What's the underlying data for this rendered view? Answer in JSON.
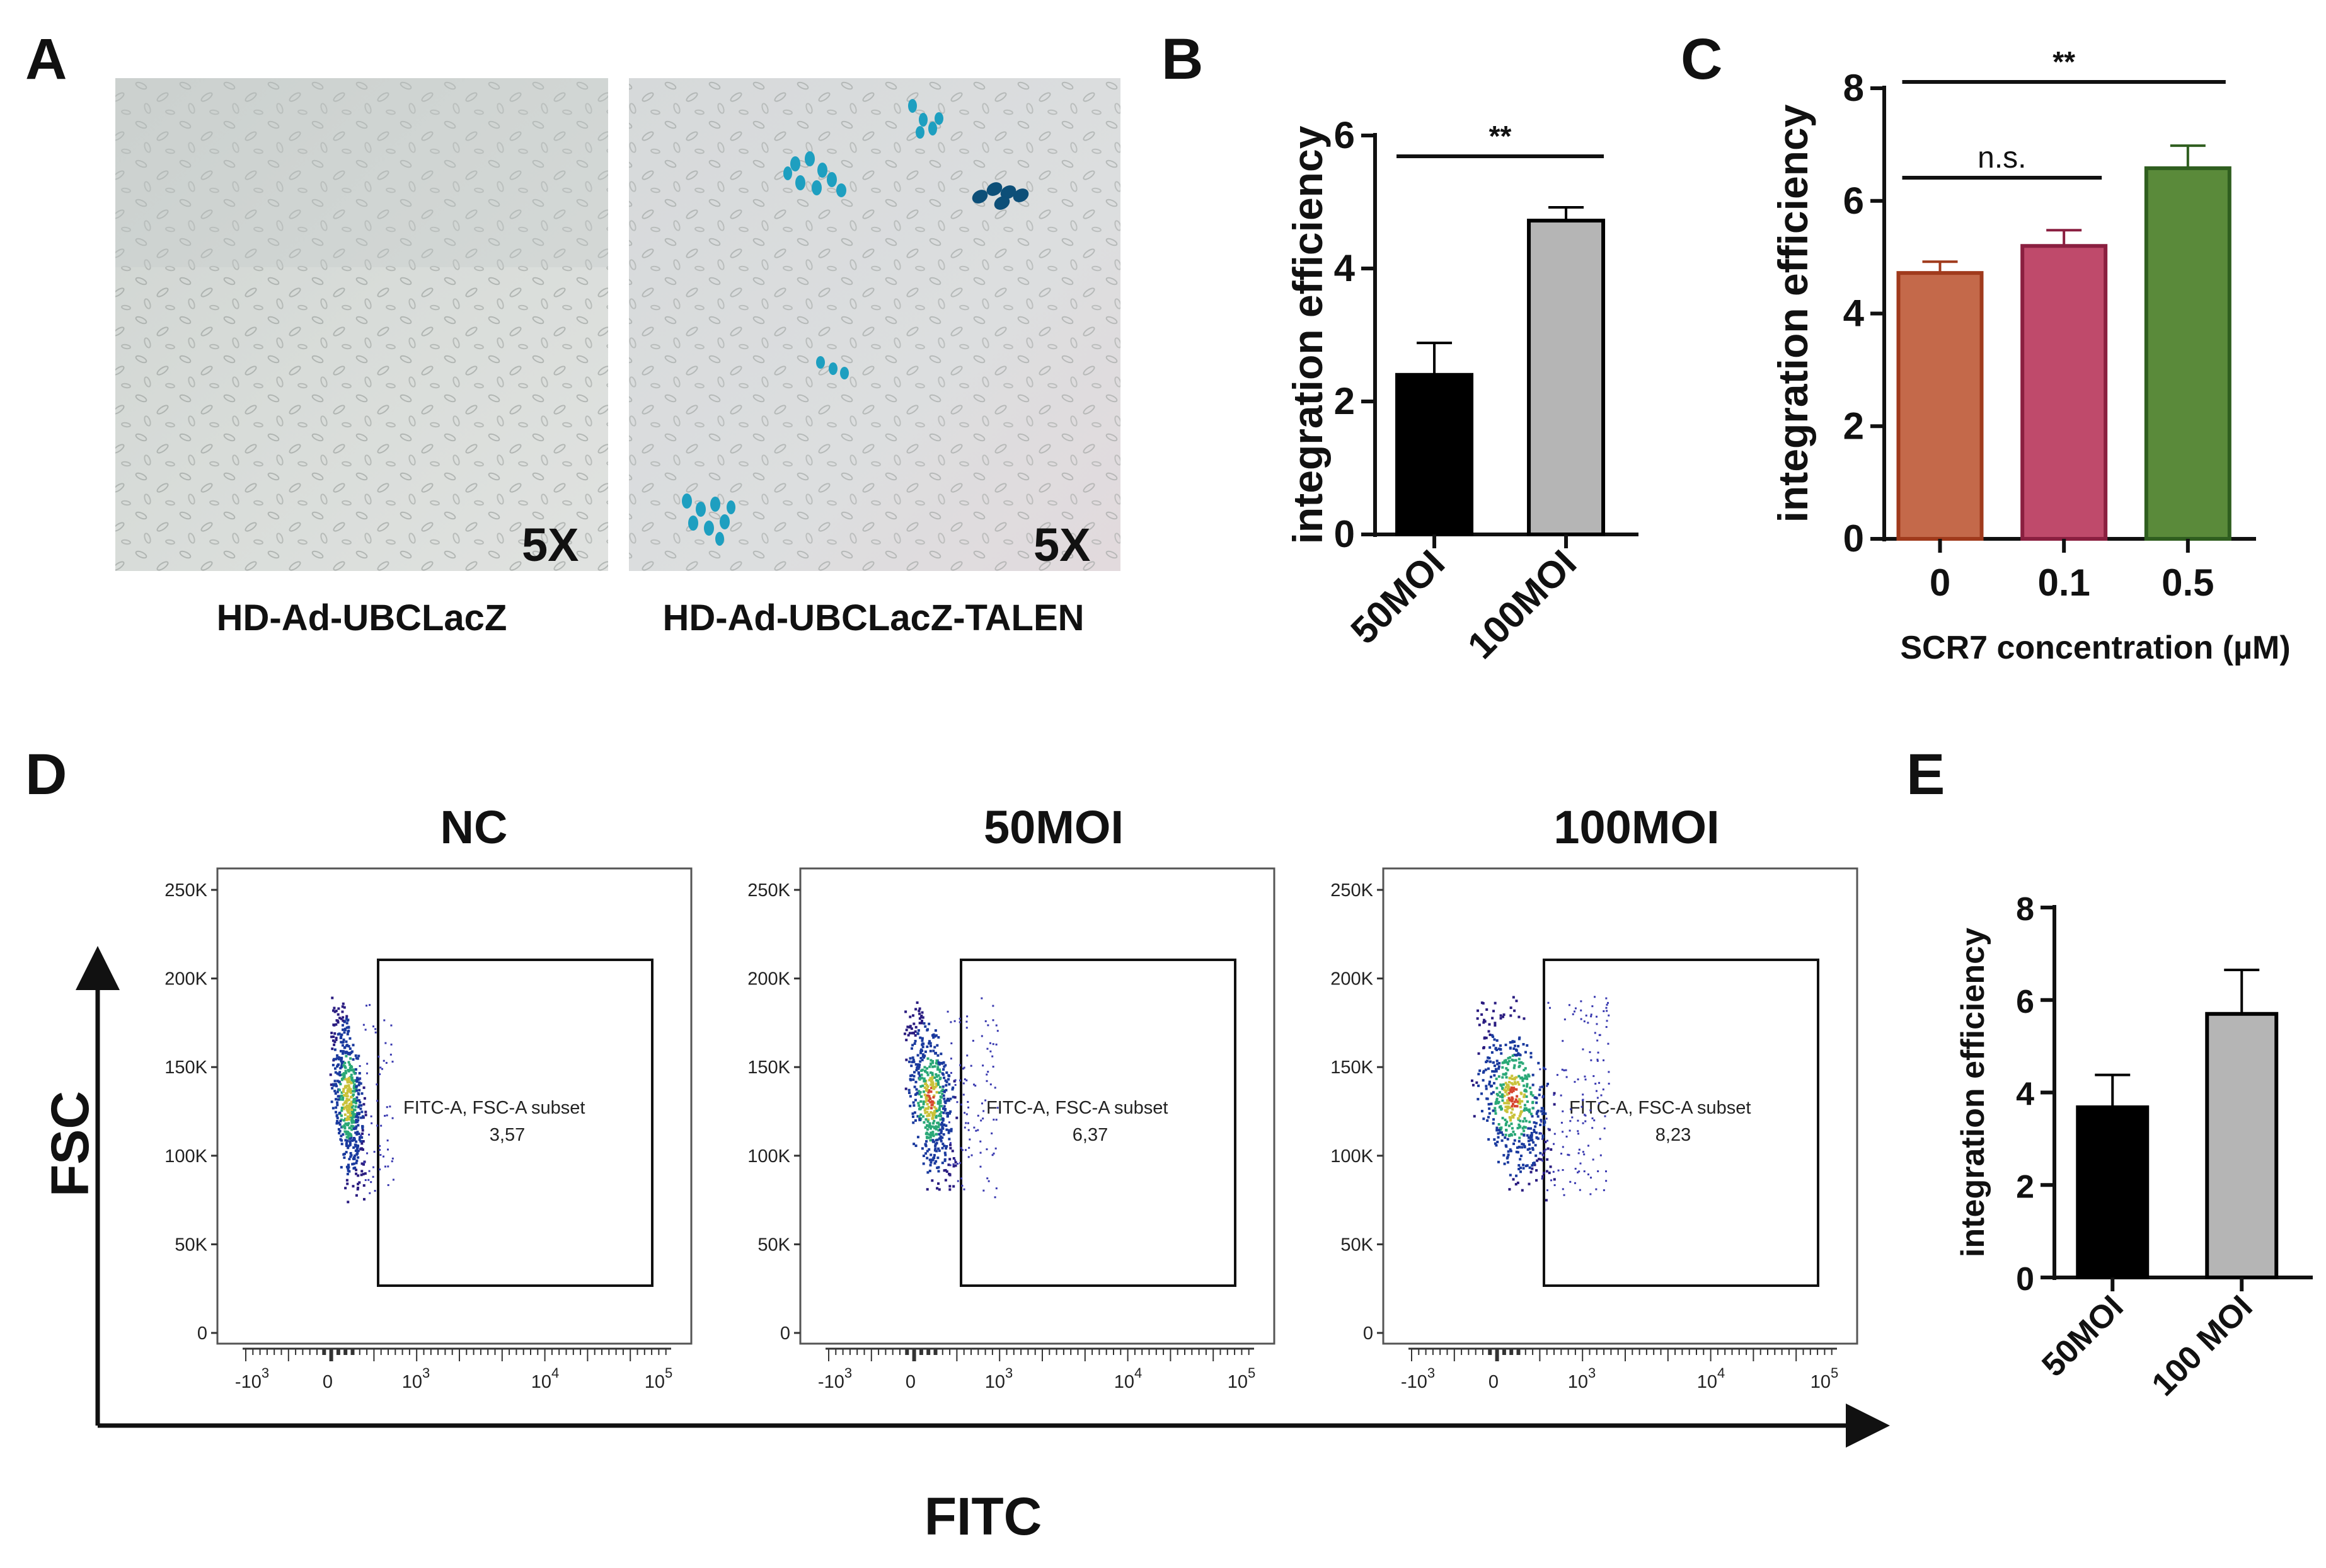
{
  "panel_labels": {
    "a": "A",
    "b": "B",
    "c": "C",
    "d": "D",
    "e": "E"
  },
  "micro": [
    {
      "caption": "HD-Ad-UBCLacZ",
      "magnification": "5X"
    },
    {
      "caption": "HD-Ad-UBCLacZ-TALEN",
      "magnification": "5X"
    }
  ],
  "flow": {
    "x_axis_title": "FITC",
    "y_axis_title": "FSC",
    "y_ticks": [
      "250K",
      "200K",
      "150K",
      "100K",
      "50K",
      "0"
    ],
    "x_ticks": [
      {
        "base": "-10",
        "exp": "3"
      },
      {
        "base": "0",
        "exp": ""
      },
      {
        "base": "10",
        "exp": "3"
      },
      {
        "base": "10",
        "exp": "4"
      },
      {
        "base": "10",
        "exp": "5"
      }
    ],
    "panels": [
      {
        "title": "NC",
        "gate_label": "FITC-A, FSC-A subset",
        "gate_value": "3,57"
      },
      {
        "title": "50MOI",
        "gate_label": "FITC-A, FSC-A subset",
        "gate_value": "6,37"
      },
      {
        "title": "100MOI",
        "gate_label": "FITC-A, FSC-A subset",
        "gate_value": "8,23"
      }
    ]
  },
  "chart_data": [
    {
      "id": "B",
      "type": "bar",
      "categories": [
        "50MOI",
        "100MOI"
      ],
      "values": [
        2.4,
        4.72
      ],
      "errors": [
        0.48,
        0.2
      ],
      "colors": [
        "#000000",
        "#b5b5b5"
      ],
      "ylabel": "integration efficiency",
      "xlabel": "",
      "ylim": [
        0,
        6
      ],
      "yticks": [
        0,
        2,
        4,
        6
      ],
      "significance": [
        {
          "from": 0,
          "to": 1,
          "label": "**"
        }
      ]
    },
    {
      "id": "C",
      "type": "bar",
      "categories": [
        "0",
        "0.1",
        "0.5"
      ],
      "values": [
        4.72,
        5.2,
        6.58
      ],
      "errors": [
        0.2,
        0.28,
        0.4
      ],
      "colors": [
        "#c4694a",
        "#bf4a6b",
        "#5a8a3a"
      ],
      "edge_colors": [
        "#a03a1c",
        "#8a1f40",
        "#2f5e1f"
      ],
      "ylabel": "integration efficiency",
      "xlabel": "SCR7 concentration (µM)",
      "ylim": [
        0,
        8
      ],
      "yticks": [
        0,
        2,
        4,
        6,
        8
      ],
      "significance": [
        {
          "from": 0,
          "to": 1,
          "label": "n.s."
        },
        {
          "from": 0,
          "to": 2,
          "label": "**"
        }
      ]
    },
    {
      "id": "E",
      "type": "bar",
      "categories": [
        "50MOI",
        "100 MOI"
      ],
      "values": [
        3.68,
        5.7
      ],
      "errors": [
        0.7,
        0.95
      ],
      "colors": [
        "#000000",
        "#b5b5b5"
      ],
      "ylabel": "integration efficiency",
      "xlabel": "",
      "ylim": [
        0,
        8
      ],
      "yticks": [
        0,
        2,
        4,
        6,
        8
      ],
      "significance": []
    }
  ]
}
